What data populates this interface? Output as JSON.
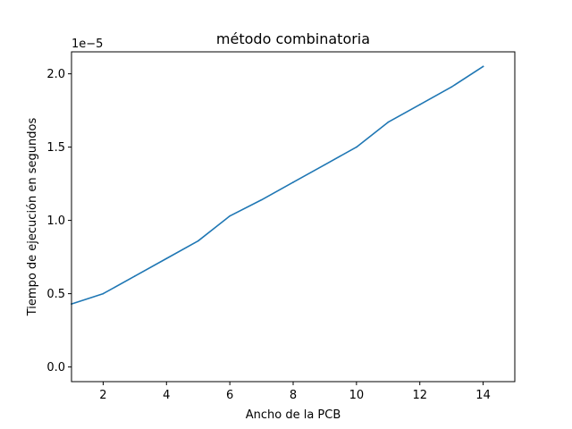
{
  "chart_data": {
    "type": "line",
    "title": "método combinatoria",
    "xlabel": "Ancho de la PCB",
    "ylabel": "Tiempo de ejecución en segundos",
    "y_offset_label": "1e−5",
    "xlim": [
      1,
      15
    ],
    "ylim": [
      -0.1,
      2.15
    ],
    "x_ticks": [
      2,
      4,
      6,
      8,
      10,
      12,
      14
    ],
    "x_tick_labels": [
      "2",
      "4",
      "6",
      "8",
      "10",
      "12",
      "14"
    ],
    "y_ticks": [
      0.0,
      0.5,
      1.0,
      1.5,
      2.0
    ],
    "y_tick_labels": [
      "0.0",
      "0.5",
      "1.0",
      "1.5",
      "2.0"
    ],
    "grid": false,
    "series": [
      {
        "color": "#1f77b4",
        "x": [
          1,
          2,
          3,
          4,
          5,
          6,
          7,
          8,
          9,
          10,
          11,
          12,
          13,
          14
        ],
        "y": [
          0.43,
          0.5,
          0.62,
          0.74,
          0.86,
          1.03,
          1.14,
          1.26,
          1.38,
          1.5,
          1.67,
          1.79,
          1.91,
          2.05
        ]
      }
    ]
  }
}
